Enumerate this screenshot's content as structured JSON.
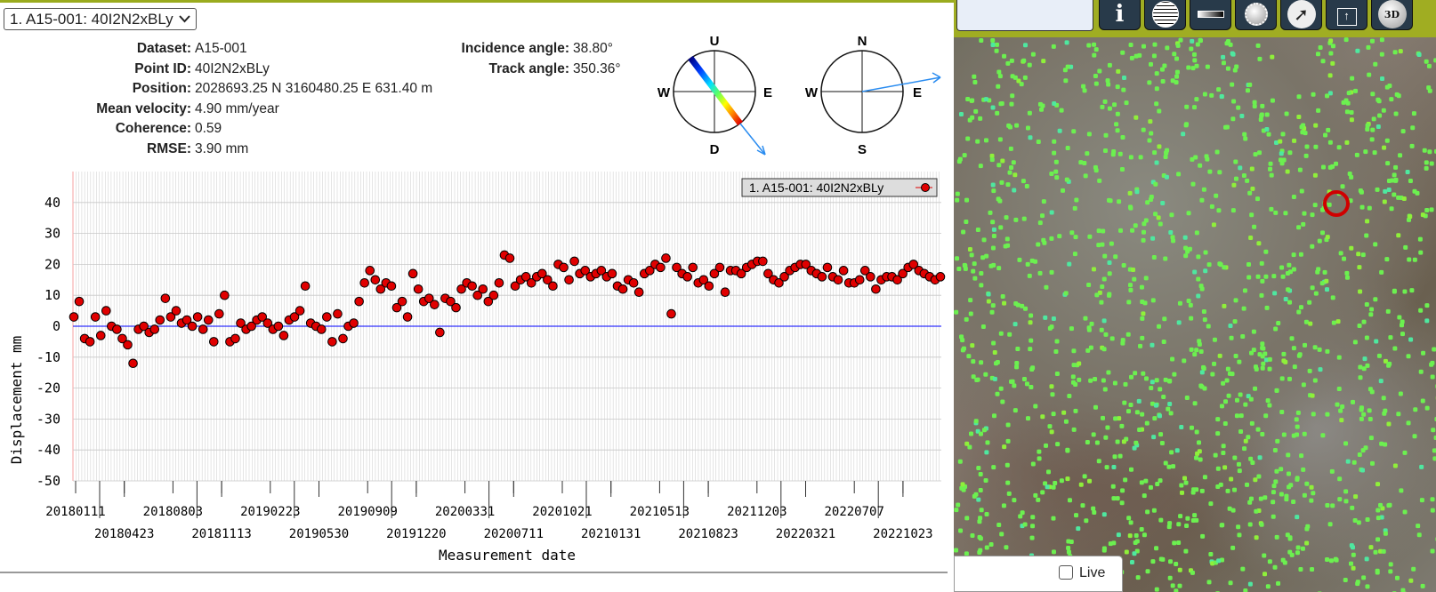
{
  "selector": {
    "value": "1. A15-001: 40I2N2xBLy"
  },
  "info_left": [
    {
      "label": "Dataset:",
      "value": "A15-001"
    },
    {
      "label": "Point ID:",
      "value": "40I2N2xBLy"
    },
    {
      "label": "Position:",
      "value": "2028693.25 N 3160480.25 E 631.40 m"
    },
    {
      "label": "Mean velocity:",
      "value": "4.90 mm/year"
    },
    {
      "label": "Coherence:",
      "value": "0.59"
    },
    {
      "label": "RMSE:",
      "value": "3.90 mm"
    }
  ],
  "info_right": [
    {
      "label": "Incidence angle:",
      "value": "38.80°"
    },
    {
      "label": "Track angle:",
      "value": "350.36°"
    }
  ],
  "compass_los": {
    "top": "U",
    "bottom": "D",
    "left": "W",
    "right": "E"
  },
  "compass_track": {
    "top": "N",
    "bottom": "S",
    "left": "W",
    "right": "E"
  },
  "chart_data": {
    "type": "scatter",
    "xlabel": "Measurement date",
    "ylabel": "Displacement mm",
    "ylim": [
      -50,
      50
    ],
    "yticks": [
      40,
      30,
      20,
      10,
      0,
      -10,
      -20,
      -30,
      -40,
      -50
    ],
    "xticks": [
      "20180111",
      "20180423",
      "20180803",
      "20181113",
      "20190223",
      "20190530",
      "20190909",
      "20191220",
      "20200331",
      "20200711",
      "20201021",
      "20210131",
      "20210513",
      "20210823",
      "20211203",
      "20220321",
      "20220707",
      "20221023"
    ],
    "legend": "1. A15-001: 40I2N2xBLy",
    "legend_position": "top-right",
    "series": [
      {
        "name": "1. A15-001: 40I2N2xBLy",
        "color": "#e00000",
        "values": [
          3,
          8,
          -4,
          -5,
          3,
          -3,
          5,
          0,
          -1,
          -4,
          -6,
          -12,
          -1,
          0,
          -2,
          -1,
          2,
          9,
          3,
          5,
          1,
          2,
          0,
          3,
          -1,
          2,
          -5,
          4,
          10,
          -5,
          -4,
          1,
          -1,
          0,
          2,
          3,
          1,
          -1,
          0,
          -3,
          2,
          3,
          5,
          13,
          1,
          0,
          -1,
          3,
          -5,
          4,
          -4,
          0,
          1,
          8,
          14,
          18,
          15,
          12,
          14,
          13,
          6,
          8,
          3,
          17,
          12,
          8,
          9,
          7,
          -2,
          9,
          8,
          6,
          12,
          14,
          13,
          10,
          12,
          8,
          10,
          14,
          23,
          22,
          13,
          15,
          16,
          14,
          16,
          17,
          15,
          13,
          20,
          19,
          15,
          21,
          17,
          18,
          16,
          17,
          18,
          16,
          17,
          13,
          12,
          15,
          14,
          11,
          17,
          18,
          20,
          19,
          22,
          4,
          19,
          17,
          16,
          19,
          14,
          15,
          13,
          17,
          19,
          11,
          18,
          18,
          17,
          19,
          20,
          21,
          21,
          17,
          15,
          14,
          16,
          18,
          19,
          20,
          20,
          18,
          17,
          16,
          19,
          16,
          15,
          18,
          14,
          14,
          15,
          18,
          16,
          12,
          15,
          16,
          16,
          15,
          17,
          19,
          20,
          18,
          17,
          16,
          15,
          16
        ]
      }
    ]
  },
  "toolbar": {
    "buttons": [
      "info",
      "globe",
      "color-scale",
      "brightness",
      "compass",
      "export",
      "3D"
    ],
    "threed_label": "3D"
  },
  "live": {
    "label": "Live",
    "checked": false
  },
  "colors": {
    "accent": "#9aab1e",
    "toolbar_button": "#283a4a",
    "point": "#e00000",
    "zero_line": "#0000ff"
  }
}
